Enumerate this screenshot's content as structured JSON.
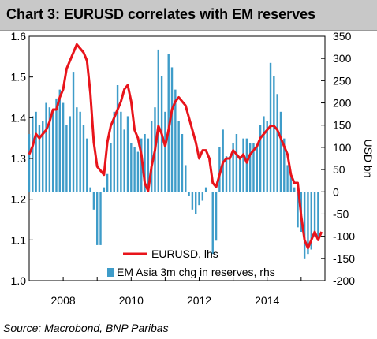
{
  "chart_data": {
    "type": "bar+line",
    "title": "Chart 3: EURUSD correlates with EM reserves",
    "source": "Source: Macrobond, BNP Paribas",
    "x_tick_labels": [
      "2008",
      "2010",
      "2012",
      "2014"
    ],
    "x_tick_values": [
      2008,
      2010,
      2012,
      2014
    ],
    "xlim": [
      2007.0,
      2015.7
    ],
    "y_left": {
      "label": "",
      "ylim": [
        1.0,
        1.6
      ],
      "ticks": [
        "1.0",
        "1.1",
        "1.2",
        "1.3",
        "1.4",
        "1.5",
        "1.6"
      ]
    },
    "y_right": {
      "label": "USD bn",
      "ylim": [
        -200,
        350
      ],
      "ticks": [
        "-200",
        "-150",
        "-100",
        "-50",
        "0",
        "50",
        "100",
        "150",
        "200",
        "250",
        "300",
        "350"
      ]
    },
    "legend": {
      "placement": "bottom-right"
    },
    "colors": {
      "line": "#e8141b",
      "bar": "#3e9cc9",
      "title_bg": "#c8c8c8"
    },
    "series": [
      {
        "name": "EURUSD, lhs",
        "kind": "line",
        "axis": "left",
        "x": [
          2007.0,
          2007.1,
          2007.2,
          2007.3,
          2007.4,
          2007.5,
          2007.6,
          2007.7,
          2007.8,
          2007.9,
          2008.0,
          2008.1,
          2008.2,
          2008.3,
          2008.4,
          2008.5,
          2008.6,
          2008.7,
          2008.8,
          2008.9,
          2009.0,
          2009.1,
          2009.2,
          2009.3,
          2009.4,
          2009.5,
          2009.6,
          2009.7,
          2009.8,
          2009.9,
          2010.0,
          2010.1,
          2010.2,
          2010.3,
          2010.4,
          2010.5,
          2010.6,
          2010.7,
          2010.8,
          2010.9,
          2011.0,
          2011.1,
          2011.2,
          2011.3,
          2011.4,
          2011.5,
          2011.6,
          2011.7,
          2011.8,
          2011.9,
          2012.0,
          2012.1,
          2012.2,
          2012.3,
          2012.4,
          2012.5,
          2012.6,
          2012.7,
          2012.8,
          2012.9,
          2013.0,
          2013.1,
          2013.2,
          2013.3,
          2013.4,
          2013.5,
          2013.6,
          2013.7,
          2013.8,
          2013.9,
          2014.0,
          2014.1,
          2014.2,
          2014.3,
          2014.4,
          2014.5,
          2014.6,
          2014.7,
          2014.8,
          2014.9,
          2015.0,
          2015.1,
          2015.2,
          2015.3,
          2015.4,
          2015.5,
          2015.6
        ],
        "values": [
          1.31,
          1.33,
          1.36,
          1.35,
          1.36,
          1.37,
          1.39,
          1.42,
          1.42,
          1.45,
          1.47,
          1.52,
          1.54,
          1.56,
          1.58,
          1.57,
          1.56,
          1.54,
          1.46,
          1.34,
          1.28,
          1.27,
          1.26,
          1.34,
          1.38,
          1.4,
          1.42,
          1.44,
          1.47,
          1.48,
          1.44,
          1.37,
          1.35,
          1.31,
          1.24,
          1.22,
          1.28,
          1.32,
          1.38,
          1.36,
          1.33,
          1.37,
          1.42,
          1.44,
          1.45,
          1.44,
          1.43,
          1.4,
          1.37,
          1.34,
          1.3,
          1.32,
          1.32,
          1.3,
          1.24,
          1.23,
          1.26,
          1.29,
          1.3,
          1.3,
          1.32,
          1.31,
          1.3,
          1.31,
          1.29,
          1.31,
          1.32,
          1.33,
          1.35,
          1.36,
          1.37,
          1.38,
          1.38,
          1.37,
          1.35,
          1.33,
          1.31,
          1.26,
          1.24,
          1.24,
          1.16,
          1.1,
          1.08,
          1.1,
          1.12,
          1.1,
          1.12
        ]
      },
      {
        "name": "EM Asia 3m chg in reserves, rhs",
        "kind": "bar",
        "axis": "right",
        "x": [
          2007.0,
          2007.1,
          2007.2,
          2007.3,
          2007.4,
          2007.5,
          2007.6,
          2007.7,
          2007.8,
          2007.9,
          2008.0,
          2008.1,
          2008.2,
          2008.3,
          2008.4,
          2008.5,
          2008.6,
          2008.7,
          2008.8,
          2008.9,
          2009.0,
          2009.1,
          2009.2,
          2009.3,
          2009.4,
          2009.5,
          2009.6,
          2009.7,
          2009.8,
          2009.9,
          2010.0,
          2010.1,
          2010.2,
          2010.3,
          2010.4,
          2010.5,
          2010.6,
          2010.7,
          2010.8,
          2010.9,
          2011.0,
          2011.1,
          2011.2,
          2011.3,
          2011.4,
          2011.5,
          2011.6,
          2011.7,
          2011.8,
          2011.9,
          2012.0,
          2012.1,
          2012.2,
          2012.3,
          2012.4,
          2012.5,
          2012.6,
          2012.7,
          2012.8,
          2012.9,
          2013.0,
          2013.1,
          2013.2,
          2013.3,
          2013.4,
          2013.5,
          2013.6,
          2013.7,
          2013.8,
          2013.9,
          2014.0,
          2014.1,
          2014.2,
          2014.3,
          2014.4,
          2014.5,
          2014.6,
          2014.7,
          2014.8,
          2014.9,
          2015.0,
          2015.1,
          2015.2,
          2015.3,
          2015.4,
          2015.5,
          2015.6
        ],
        "values": [
          130,
          170,
          180,
          150,
          160,
          200,
          190,
          180,
          210,
          230,
          200,
          150,
          170,
          270,
          190,
          180,
          150,
          120,
          10,
          -40,
          -120,
          -120,
          10,
          40,
          110,
          180,
          240,
          180,
          140,
          170,
          110,
          100,
          90,
          120,
          130,
          120,
          160,
          190,
          320,
          260,
          180,
          310,
          280,
          230,
          160,
          130,
          60,
          -10,
          -40,
          -50,
          -30,
          -20,
          10,
          0,
          -140,
          -110,
          100,
          140,
          80,
          80,
          110,
          130,
          80,
          120,
          120,
          110,
          110,
          100,
          150,
          170,
          160,
          290,
          260,
          220,
          180,
          120,
          60,
          40,
          10,
          -80,
          -90,
          -150,
          -140,
          -130,
          -100,
          -110,
          0
        ]
      }
    ]
  }
}
